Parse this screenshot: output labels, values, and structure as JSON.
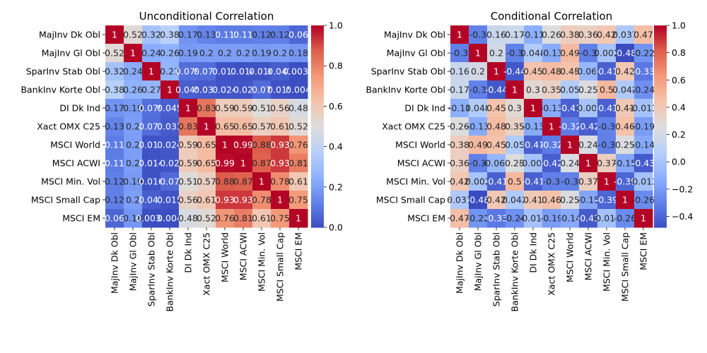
{
  "chart_data": [
    {
      "type": "heatmap",
      "title": "Unconditional Correlation",
      "labels": [
        "MajInv Dk Obl",
        "MajInv Gl Obl",
        "SparInv Stab Obl",
        "BankInv Korte Obl",
        "DI Dk Ind",
        "Xact OMX C25",
        "MSCI World",
        "MSCI ACWI",
        "MSCI Min. Vol",
        "MSCI Small Cap",
        "MSCI EM"
      ],
      "matrix": [
        [
          1,
          0.52,
          0.32,
          0.38,
          0.17,
          0.13,
          0.11,
          0.11,
          0.12,
          0.12,
          0.06
        ],
        [
          0.52,
          1,
          0.24,
          0.26,
          0.19,
          0.2,
          0.2,
          0.2,
          0.19,
          0.2,
          0.18
        ],
        [
          0.32,
          0.24,
          1,
          0.27,
          0.079,
          0.073,
          0.017,
          0.014,
          0.016,
          0.041,
          0.0038
        ],
        [
          0.38,
          0.26,
          0.27,
          1,
          0.045,
          0.033,
          0.024,
          0.02,
          0.07,
          0.015,
          0.004
        ],
        [
          0.17,
          0.19,
          0.079,
          0.045,
          1,
          0.83,
          0.59,
          0.59,
          0.51,
          0.56,
          0.48
        ],
        [
          0.13,
          0.2,
          0.073,
          0.033,
          0.83,
          1,
          0.65,
          0.65,
          0.57,
          0.61,
          0.52
        ],
        [
          0.11,
          0.2,
          0.017,
          0.024,
          0.59,
          0.65,
          1,
          0.99,
          0.88,
          0.93,
          0.76
        ],
        [
          0.11,
          0.2,
          0.014,
          0.02,
          0.59,
          0.65,
          0.99,
          1,
          0.87,
          0.93,
          0.81
        ],
        [
          0.12,
          0.19,
          0.016,
          0.07,
          0.51,
          0.57,
          0.88,
          0.87,
          1,
          0.78,
          0.61
        ],
        [
          0.12,
          0.2,
          0.041,
          0.015,
          0.56,
          0.61,
          0.93,
          0.93,
          0.78,
          1,
          0.75
        ],
        [
          0.06,
          0.18,
          0.0038,
          0.004,
          0.48,
          0.52,
          0.76,
          0.81,
          0.61,
          0.75,
          1
        ]
      ],
      "annotations": [
        [
          "1",
          "0.52",
          "0.32",
          "0.38",
          "0.17",
          "0.13",
          "0.11",
          "0.11",
          "0.12",
          "0.12",
          "0.06"
        ],
        [
          "0.52",
          "1",
          "0.24",
          "0.26",
          "0.19",
          "0.2",
          "0.2",
          "0.2",
          "0.19",
          "0.2",
          "0.18"
        ],
        [
          "0.32",
          "0.24",
          "1",
          "0.27",
          "0.079",
          "0.073",
          "0.017",
          "0.014",
          "0.016",
          "0.041",
          "0.0038"
        ],
        [
          "0.38",
          "0.26",
          "0.27",
          "1",
          "0.045",
          "0.033",
          "0.024",
          "0.02",
          "0.07",
          "0.015",
          "0.004"
        ],
        [
          "0.17",
          "0.19",
          "0.079",
          "0.045",
          "1",
          "0.83",
          "0.59",
          "0.59",
          "0.51",
          "0.56",
          "0.48"
        ],
        [
          "0.13",
          "0.2",
          "0.073",
          "0.033",
          "0.83",
          "1",
          "0.65",
          "0.65",
          "0.57",
          "0.61",
          "0.52"
        ],
        [
          "0.11",
          "0.2",
          "0.017",
          "0.024",
          "0.59",
          "0.65",
          "1",
          "0.99",
          "0.88",
          "0.93",
          "0.76"
        ],
        [
          "0.11",
          "0.2",
          "0.014",
          "0.02",
          "0.59",
          "0.65",
          "0.99",
          "1",
          "0.87",
          "0.93",
          "0.81"
        ],
        [
          "0.12",
          "0.19",
          "0.016",
          "0.07",
          "0.51",
          "0.57",
          "0.88",
          "0.87",
          "1",
          "0.78",
          "0.61"
        ],
        [
          "0.12",
          "0.2",
          "0.041",
          "0.015",
          "0.56",
          "0.61",
          "0.93",
          "0.93",
          "0.78",
          "1",
          "0.75"
        ],
        [
          "0.06",
          "0.18",
          "0.0038",
          "0.004",
          "0.48",
          "0.52",
          "0.76",
          "0.81",
          "0.61",
          "0.75",
          "1"
        ]
      ],
      "colormap": "coolwarm",
      "vmin": 0,
      "vmax": 1,
      "colorbar_ticks": [
        "0.0",
        "0.2",
        "0.4",
        "0.6",
        "0.8",
        "1.0"
      ],
      "colorbar_tick_values": [
        0,
        0.2,
        0.4,
        0.6,
        0.8,
        1.0
      ]
    },
    {
      "type": "heatmap",
      "title": "Conditional Correlation",
      "labels": [
        "MajInv Dk Obl",
        "MajInv Gl Obl",
        "SparInv Stab Obl",
        "BankInv Korte Obl",
        "DI Dk Ind",
        "Xact OMX C25",
        "MSCI World",
        "MSCI ACWI",
        "MSCI Min. Vol",
        "MSCI Small Cap",
        "MSCI EM"
      ],
      "matrix": [
        [
          1,
          -0.3,
          0.16,
          0.17,
          -0.11,
          0.26,
          0.38,
          0.36,
          0.42,
          0.037,
          0.47
        ],
        [
          -0.3,
          1,
          0.2,
          -0.3,
          0.048,
          -0.13,
          0.49,
          -0.3,
          0.002,
          -0.48,
          -0.22
        ],
        [
          0.16,
          0.2,
          1,
          -0.44,
          0.45,
          0.48,
          0.45,
          -0.069,
          -0.41,
          0.42,
          -0.33
        ],
        [
          0.17,
          -0.3,
          -0.44,
          1,
          0.3,
          0.35,
          0.05,
          0.25,
          0.5,
          0.042,
          -0.24
        ],
        [
          -0.11,
          0.048,
          0.45,
          0.3,
          1,
          -0.13,
          -0.41,
          -0.003,
          -0.41,
          0.41,
          -0.013
        ],
        [
          0.26,
          -0.13,
          0.48,
          0.35,
          -0.13,
          1,
          -0.32,
          -0.42,
          -0.3,
          0.46,
          -0.19
        ],
        [
          0.38,
          0.49,
          0.45,
          0.05,
          -0.41,
          -0.32,
          1,
          0.24,
          -0.3,
          0.25,
          -0.14
        ],
        [
          0.36,
          -0.3,
          -0.069,
          0.25,
          -0.003,
          -0.42,
          0.24,
          1,
          0.37,
          -0.15,
          -0.43
        ],
        [
          0.42,
          0.002,
          -0.41,
          0.5,
          -0.41,
          -0.3,
          -0.3,
          0.37,
          1,
          -0.39,
          -0.013
        ],
        [
          0.037,
          -0.48,
          0.42,
          0.042,
          0.41,
          0.46,
          0.25,
          -0.15,
          -0.39,
          1,
          -0.26
        ],
        [
          0.47,
          -0.22,
          -0.33,
          -0.24,
          -0.013,
          -0.19,
          -0.14,
          -0.43,
          -0.013,
          -0.26,
          1
        ]
      ],
      "annotations": [
        [
          "1",
          "-0.3",
          "0.16",
          "0.17",
          "-0.11",
          "0.26",
          "0.38",
          "0.36",
          "0.42",
          "0.037",
          "0.47"
        ],
        [
          "-0.3",
          "1",
          "0.2",
          "-0.3",
          "0.048",
          "-0.13",
          "0.49",
          "-0.3",
          "0.002",
          "-0.48",
          "-0.22"
        ],
        [
          "0.16",
          "0.2",
          "1",
          "-0.44",
          "0.45",
          "0.48",
          "0.45",
          "-0.069",
          "-0.41",
          "0.42",
          "-0.33"
        ],
        [
          "0.17",
          "-0.3",
          "-0.44",
          "1",
          "0.3",
          "0.35",
          "0.05",
          "0.25",
          "0.5",
          "0.042",
          "-0.24"
        ],
        [
          "-0.11",
          "0.048",
          "0.45",
          "0.3",
          "1",
          "-0.13",
          "-0.41",
          "-0.003",
          "-0.41",
          "0.41",
          "-0.013"
        ],
        [
          "0.26",
          "-0.13",
          "0.48",
          "0.35",
          "-0.13",
          "1",
          "-0.32",
          "-0.42",
          "-0.3",
          "0.46",
          "-0.19"
        ],
        [
          "0.38",
          "0.49",
          "0.45",
          "0.05",
          "-0.41",
          "-0.32",
          "1",
          "0.24",
          "-0.3",
          "0.25",
          "-0.14"
        ],
        [
          "0.36",
          "-0.3",
          "-0.069",
          "0.25",
          "-0.003",
          "-0.42",
          "0.24",
          "1",
          "0.37",
          "-0.15",
          "-0.43"
        ],
        [
          "0.42",
          "0.002",
          "-0.41",
          "0.5",
          "-0.41",
          "-0.3",
          "-0.3",
          "0.37",
          "1",
          "-0.39",
          "-0.013"
        ],
        [
          "0.037",
          "-0.48",
          "0.42",
          "0.042",
          "0.41",
          "0.46",
          "0.25",
          "-0.15",
          "-0.39",
          "1",
          "-0.26"
        ],
        [
          "0.47",
          "-0.22",
          "-0.33",
          "-0.24",
          "-0.013",
          "-0.19",
          "-0.14",
          "-0.43",
          "-0.013",
          "-0.26",
          "1"
        ]
      ],
      "colormap": "coolwarm",
      "vmin": -0.48,
      "vmax": 1,
      "colorbar_ticks": [
        "−0.4",
        "−0.2",
        "0.0",
        "0.2",
        "0.4",
        "0.6",
        "0.8",
        "1.0"
      ],
      "colorbar_tick_values": [
        -0.4,
        -0.2,
        0,
        0.2,
        0.4,
        0.6,
        0.8,
        1.0
      ]
    }
  ]
}
